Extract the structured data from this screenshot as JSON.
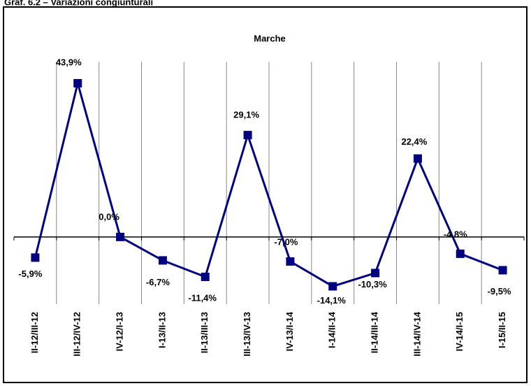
{
  "heading": "Graf. 6.2 – Variazioni congiunturali",
  "chart_data": {
    "type": "line",
    "title": "Marche",
    "categories": [
      "II-12/III-12",
      "III-12/IV-12",
      "IV-12/I-13",
      "I-13/II-13",
      "II-13/III-13",
      "III-13/IV-13",
      "IV-13/I-14",
      "I-14/II-14",
      "II-14/III-14",
      "III-14/IV-14",
      "IV-14/I-15",
      "I-15/II-15"
    ],
    "series": [
      {
        "name": "Marche",
        "color": "#000080",
        "values": [
          -5.9,
          43.9,
          0.0,
          -6.7,
          -11.4,
          29.1,
          -7.0,
          -14.1,
          -10.3,
          22.4,
          -4.8,
          -9.5
        ],
        "value_labels": [
          "-5,9%",
          "43,9%",
          "0,0%",
          "-6,7%",
          "-11,4%",
          "29,1%",
          "-7,0%",
          "-14,1%",
          "-10,3%",
          "22,4%",
          "-4,8%",
          "-9,5%"
        ]
      }
    ],
    "ylim": [
      -20,
      50
    ],
    "grid": true
  }
}
